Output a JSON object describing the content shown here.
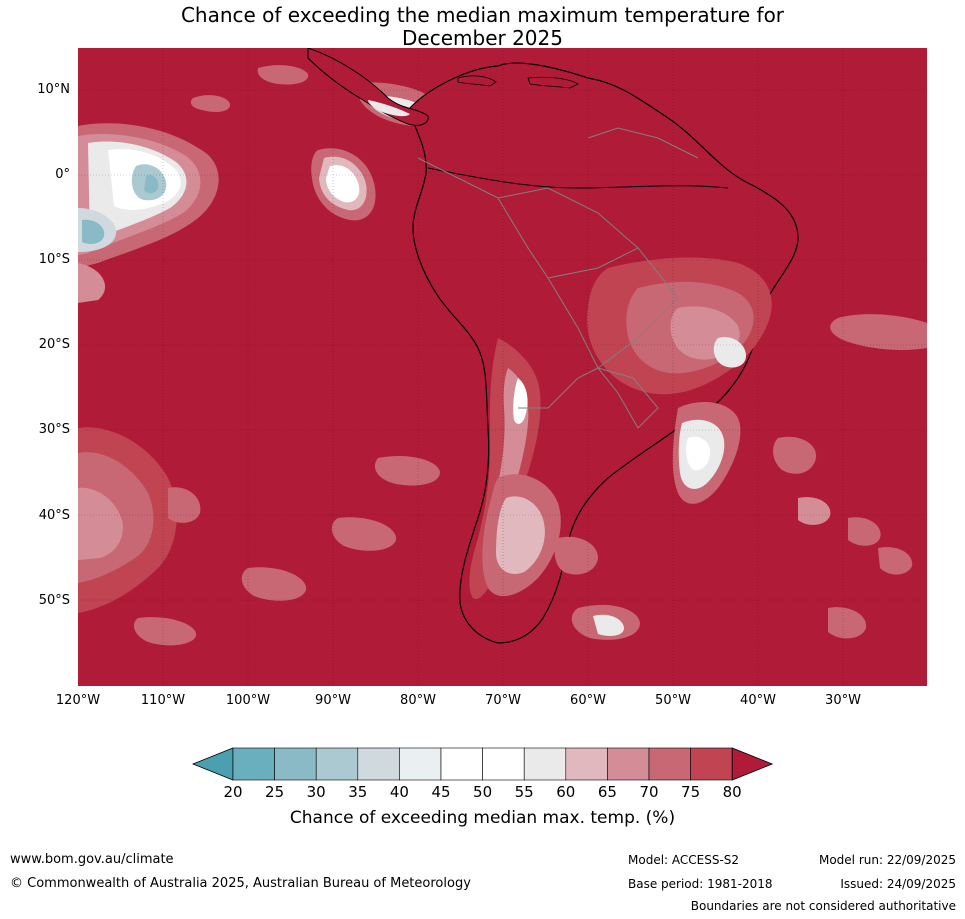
{
  "title": {
    "line1": "Chance of exceeding the median maximum temperature for",
    "line2": "December 2025"
  },
  "map": {
    "region": "South America",
    "lat_labels": [
      "10°N",
      "0°",
      "10°S",
      "20°S",
      "30°S",
      "40°S",
      "50°S"
    ],
    "lon_labels": [
      "120°W",
      "110°W",
      "100°W",
      "90°W",
      "80°W",
      "70°W",
      "60°W",
      "50°W",
      "40°W",
      "30°W"
    ]
  },
  "legend": {
    "ticks": [
      "20",
      "25",
      "30",
      "35",
      "40",
      "45",
      "50",
      "55",
      "60",
      "65",
      "70",
      "75",
      "80"
    ],
    "colors": [
      "#4aa0ae",
      "#6aafbd",
      "#8bbac7",
      "#abc9d0",
      "#d0dade",
      "#eaf0f2",
      "#ffffff",
      "#ffffff",
      "#eaeaea",
      "#e0b8be",
      "#d48d97",
      "#c86874",
      "#c04452",
      "#b01c37"
    ],
    "title": "Chance of exceeding median max. temp. (%)"
  },
  "footer": {
    "website": "www.bom.gov.au/climate",
    "copyright": "© Commonwealth of Australia 2025, Australian Bureau of Meteorology",
    "model": "Model: ACCESS-S2",
    "base_period": "Base period: 1981-2018",
    "model_run": "Model run: 22/09/2025",
    "issued": "Issued: 24/09/2025",
    "disclaimer": "Boundaries are not considered authoritative"
  }
}
